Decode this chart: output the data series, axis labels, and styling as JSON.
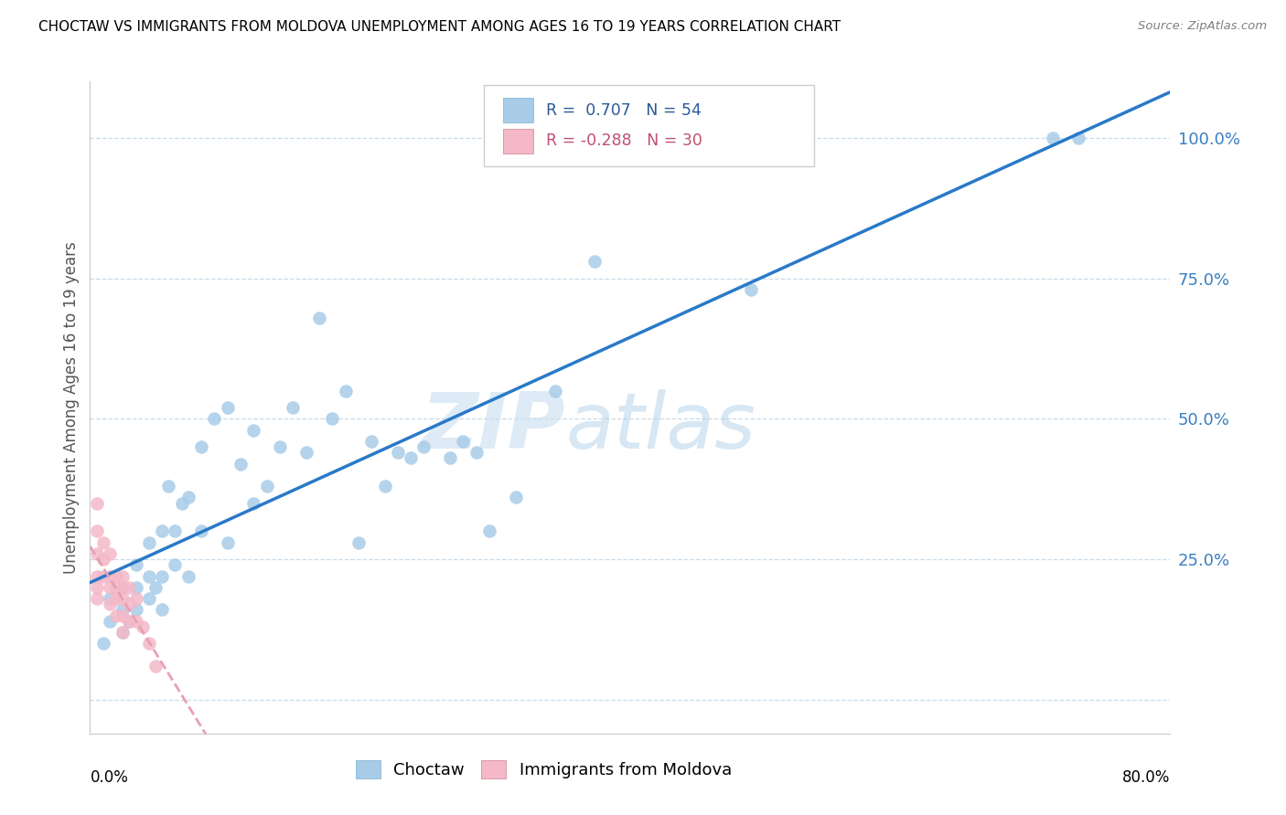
{
  "title": "CHOCTAW VS IMMIGRANTS FROM MOLDOVA UNEMPLOYMENT AMONG AGES 16 TO 19 YEARS CORRELATION CHART",
  "source": "Source: ZipAtlas.com",
  "ylabel": "Unemployment Among Ages 16 to 19 years",
  "xlim": [
    -0.005,
    0.82
  ],
  "ylim": [
    -0.06,
    1.1
  ],
  "yticks": [
    0.0,
    0.25,
    0.5,
    0.75,
    1.0
  ],
  "ytick_labels": [
    "",
    "25.0%",
    "50.0%",
    "75.0%",
    "100.0%"
  ],
  "choctaw_color": "#a8cce8",
  "moldova_color": "#f4b8c8",
  "regression_blue": "#2979c8",
  "regression_pink": "#e8a0b0",
  "choctaw_R": 0.707,
  "choctaw_N": 54,
  "moldova_R": -0.288,
  "moldova_N": 30,
  "watermark_zip": "ZIP",
  "watermark_atlas": "atlas",
  "choctaw_x": [
    0.005,
    0.01,
    0.01,
    0.02,
    0.02,
    0.02,
    0.025,
    0.03,
    0.03,
    0.03,
    0.04,
    0.04,
    0.04,
    0.045,
    0.05,
    0.05,
    0.05,
    0.055,
    0.06,
    0.06,
    0.065,
    0.07,
    0.07,
    0.08,
    0.08,
    0.09,
    0.1,
    0.1,
    0.11,
    0.12,
    0.12,
    0.13,
    0.14,
    0.15,
    0.16,
    0.17,
    0.18,
    0.19,
    0.2,
    0.21,
    0.22,
    0.23,
    0.24,
    0.25,
    0.27,
    0.28,
    0.29,
    0.3,
    0.32,
    0.35,
    0.38,
    0.5,
    0.73,
    0.75
  ],
  "choctaw_y": [
    0.1,
    0.14,
    0.18,
    0.12,
    0.16,
    0.2,
    0.14,
    0.16,
    0.2,
    0.24,
    0.18,
    0.22,
    0.28,
    0.2,
    0.16,
    0.22,
    0.3,
    0.38,
    0.24,
    0.3,
    0.35,
    0.22,
    0.36,
    0.3,
    0.45,
    0.5,
    0.28,
    0.52,
    0.42,
    0.35,
    0.48,
    0.38,
    0.45,
    0.52,
    0.44,
    0.68,
    0.5,
    0.55,
    0.28,
    0.46,
    0.38,
    0.44,
    0.43,
    0.45,
    0.43,
    0.46,
    0.44,
    0.3,
    0.36,
    0.55,
    0.78,
    0.73,
    1.0,
    1.0
  ],
  "moldova_x": [
    0.0,
    0.0,
    0.0,
    0.0,
    0.0,
    0.0,
    0.005,
    0.005,
    0.005,
    0.01,
    0.01,
    0.01,
    0.01,
    0.015,
    0.015,
    0.015,
    0.015,
    0.02,
    0.02,
    0.02,
    0.02,
    0.02,
    0.025,
    0.025,
    0.025,
    0.03,
    0.03,
    0.035,
    0.04,
    0.045
  ],
  "moldova_y": [
    0.35,
    0.3,
    0.26,
    0.22,
    0.2,
    0.18,
    0.28,
    0.25,
    0.22,
    0.26,
    0.22,
    0.2,
    0.17,
    0.22,
    0.2,
    0.18,
    0.15,
    0.22,
    0.2,
    0.18,
    0.15,
    0.12,
    0.2,
    0.17,
    0.14,
    0.18,
    0.14,
    0.13,
    0.1,
    0.06
  ]
}
